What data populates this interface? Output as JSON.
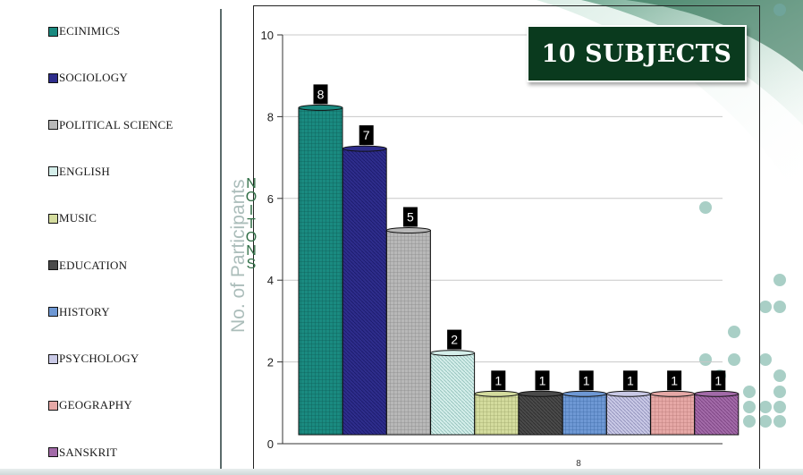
{
  "chart_data": {
    "type": "bar",
    "title": "10 SUBJECTS",
    "categories": [
      "ECINIMICS",
      "SOCIOLOGY",
      "POLITICAL SCIENCE",
      "ENGLISH",
      "MUSIC",
      "EDUCATION",
      "HISTORY",
      "PSYCHOLOGY",
      "GEOGRAPHY",
      "SANSKRIT"
    ],
    "values": [
      8,
      7,
      5,
      2,
      1,
      1,
      1,
      1,
      1,
      1
    ],
    "data_labels": [
      "8",
      "7",
      "5",
      "2",
      "1",
      "1",
      "1",
      "1",
      "1",
      "1"
    ],
    "ylabel": "No. of Participants",
    "ylabel_overlay": "NOITONS",
    "ylim": [
      0,
      10
    ],
    "yticks": [
      "0",
      "2",
      "4",
      "6",
      "8",
      "10"
    ],
    "xtick_label": "8",
    "grid": true,
    "legend_position": "left",
    "colors": [
      "#1a8a80",
      "#2e2d8c",
      "#b8b8b8",
      "#d4eeea",
      "#d4dc9e",
      "#4a4a4a",
      "#6e98d4",
      "#c9c9e6",
      "#e6a8a6",
      "#a26aa8"
    ]
  },
  "theme": {
    "accent": "#0a3a1e",
    "dot_color": "#a9cfc6"
  }
}
